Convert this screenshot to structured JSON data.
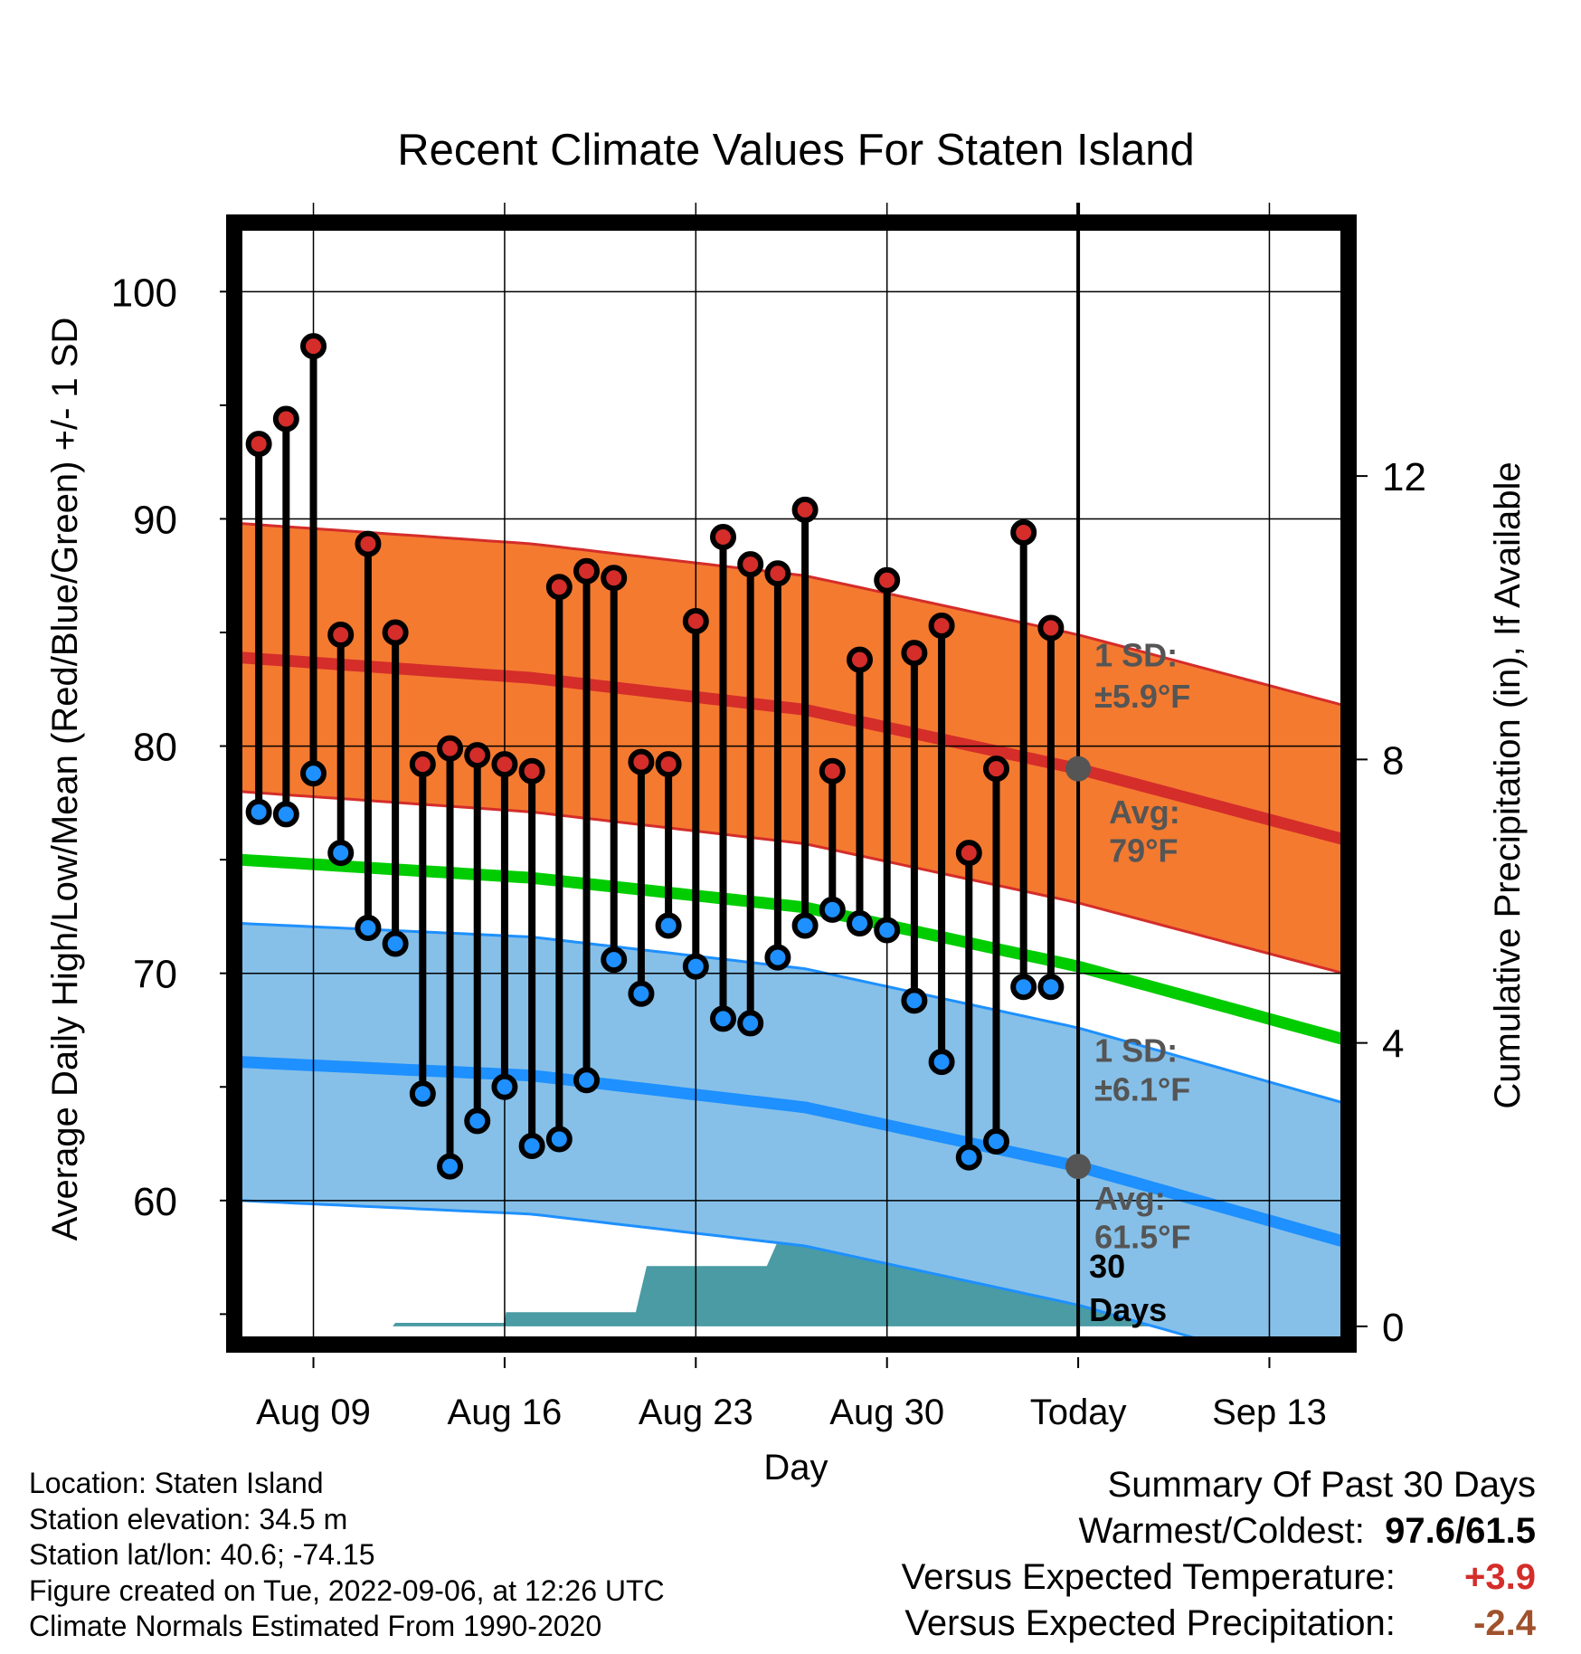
{
  "chart_data": {
    "type": "line",
    "title": "Recent Climate Values For Staten Island",
    "xlabel": "Day",
    "ylabel": "Average Daily High/Low/Mean (Red/Blue/Green) +/- 1 SD",
    "y2label": "Cumulative Precipitation (in), If Available",
    "ylim": [
      53.9,
      102.8
    ],
    "y_ticks": [
      60,
      70,
      80,
      90,
      100
    ],
    "y2lim": [
      -0.18,
      15.5
    ],
    "y2_ticks": [
      0,
      4,
      8,
      12
    ],
    "x_ticks": [
      {
        "day": 2,
        "label": "Aug 09"
      },
      {
        "day": 9,
        "label": "Aug 16"
      },
      {
        "day": 16,
        "label": "Aug 23"
      },
      {
        "day": 23,
        "label": "Aug 30"
      },
      {
        "day": 30,
        "label": "Today"
      },
      {
        "day": 37,
        "label": "Sep 13"
      }
    ],
    "xlim": [
      -0.7,
      39.7
    ],
    "today_day": 30,
    "grid": true,
    "colors": {
      "high_band": "#f47a30",
      "high_line": "#d42d2a",
      "low_band": "#86c0e8",
      "low_line": "#1e90ff",
      "mean_line": "#00cc00",
      "precip": "#4a9ba3",
      "high_marker": "#d42d2a",
      "low_marker": "#1e90ff",
      "annotation": "#555555",
      "anomaly_temp": "#d42d2a",
      "anomaly_precip": "#a0522d"
    },
    "normal_high": {
      "days": [
        -0.7,
        10,
        20,
        30,
        39.7
      ],
      "values": [
        83.9,
        83.0,
        81.6,
        79.0,
        75.9
      ]
    },
    "normal_low": {
      "days": [
        -0.7,
        10,
        20,
        30,
        39.7
      ],
      "values": [
        66.1,
        65.5,
        64.1,
        61.5,
        58.2
      ]
    },
    "normal_mean": {
      "days": [
        -0.7,
        10,
        20,
        30,
        39.7
      ],
      "values": [
        75.0,
        74.2,
        72.9,
        70.3,
        67.1
      ]
    },
    "sd_high": 5.9,
    "sd_low": 6.1,
    "observations": {
      "days": [
        0,
        1,
        2,
        3,
        4,
        5,
        6,
        7,
        8,
        9,
        10,
        11,
        12,
        13,
        14,
        15,
        16,
        17,
        18,
        19,
        20,
        21,
        22,
        23,
        24,
        25,
        26,
        27,
        28,
        29
      ],
      "highs": [
        93.3,
        94.4,
        97.6,
        84.9,
        88.9,
        85.0,
        79.2,
        79.9,
        79.6,
        79.2,
        78.9,
        87.0,
        87.7,
        87.4,
        79.3,
        79.2,
        85.5,
        89.2,
        88.0,
        87.6,
        90.4,
        78.9,
        83.8,
        87.3,
        84.1,
        85.3,
        75.3,
        79.0,
        89.4,
        85.2
      ],
      "lows": [
        77.1,
        77.0,
        78.8,
        75.3,
        72.0,
        71.3,
        64.7,
        61.5,
        63.5,
        65.0,
        62.4,
        62.7,
        65.3,
        70.6,
        69.1,
        72.1,
        70.3,
        68.0,
        67.8,
        70.7,
        72.1,
        72.8,
        72.2,
        71.9,
        68.8,
        66.1,
        61.9,
        62.6,
        69.4,
        69.4
      ]
    },
    "precip_cumulative": {
      "days": [
        -0.7,
        1.6,
        2.0,
        4.9,
        5.0,
        9.0,
        9.05,
        12.9,
        13.0,
        13.8,
        14.2,
        16.7,
        16.8,
        18.6,
        19.0,
        21.0,
        21.2,
        23.0,
        23.1,
        26.2,
        26.3,
        26.9,
        27.2,
        30,
        39.7
      ],
      "values": [
        0,
        0,
        0,
        0,
        0.05,
        0.05,
        0.2,
        0.2,
        0.2,
        0.2,
        0.85,
        0.85,
        0.85,
        0.85,
        1.2,
        1.2,
        1.2,
        1.2,
        1.4,
        1.4,
        1.4,
        1.4,
        1.6,
        1.6,
        1.6
      ]
    },
    "annotations": {
      "high_sd": "1 SD:",
      "high_sd_value": "±5.9°F",
      "high_avg": "Avg:",
      "high_avg_value": "79°F",
      "low_sd": "1 SD:",
      "low_sd_value": "±6.1°F",
      "low_avg": "Avg:",
      "low_avg_value": "61.5°F",
      "period_number": "30",
      "period_unit": "Days"
    }
  },
  "station_info": {
    "location": "Location: Staten Island",
    "elevation": "Station elevation: 34.5 m",
    "latlon": "Station lat/lon: 40.6; -74.15",
    "created": "Figure created on Tue, 2022-09-06, at 12:26 UTC",
    "normals": "Climate Normals Estimated From 1990-2020"
  },
  "summary": {
    "title": "Summary Of Past 30 Days",
    "warm_cold_label": "Warmest/Coldest:",
    "warm_cold_value": "97.6/61.5",
    "temp_label": "Versus Expected Temperature:",
    "temp_value": "+3.9",
    "precip_label": "Versus Expected Precipitation:",
    "precip_value": "-2.4"
  }
}
